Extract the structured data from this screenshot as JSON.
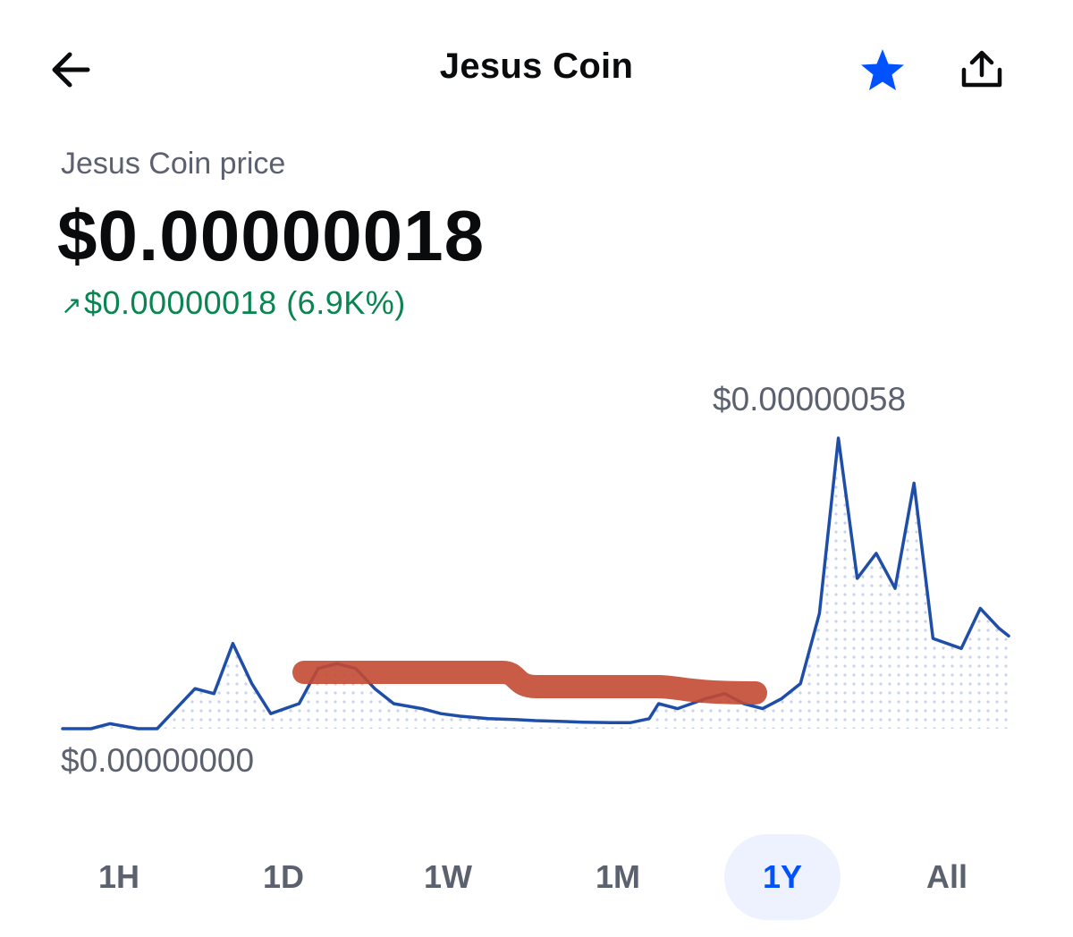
{
  "header": {
    "title": "Jesus Coin",
    "back_icon": "arrow-left-icon",
    "star_icon": "star-icon",
    "share_icon": "share-icon"
  },
  "price": {
    "label": "Jesus Coin price",
    "value": "$0.00000018",
    "change_arrow": "↗",
    "change_text": "$0.00000018 (6.9K%)"
  },
  "chart": {
    "max_label": "$0.00000058",
    "min_label": "$0.00000000"
  },
  "tabs": [
    {
      "label": "1H"
    },
    {
      "label": "1D"
    },
    {
      "label": "1W"
    },
    {
      "label": "1M"
    },
    {
      "label": "1Y",
      "active": true
    },
    {
      "label": "All"
    }
  ],
  "colors": {
    "accent": "#0052ff",
    "line": "#1f4ea8",
    "positive": "#098551",
    "muted": "#5b616e",
    "redaction": "#c24a33"
  },
  "chart_data": {
    "type": "line",
    "ylim": [
      0,
      5.8e-07
    ],
    "x": [
      0,
      3,
      5,
      8,
      10,
      12,
      14,
      16,
      18,
      20,
      22,
      25,
      27,
      29,
      31,
      33,
      35,
      38,
      40,
      42,
      45,
      48,
      50,
      52,
      55,
      58,
      60,
      62,
      63,
      65,
      68,
      70,
      72,
      74,
      76,
      78,
      80,
      82,
      84,
      86,
      88,
      90,
      92,
      95,
      97,
      99,
      100
    ],
    "y": [
      0,
      0,
      1e-08,
      0,
      0,
      4e-08,
      8e-08,
      7e-08,
      1.7e-07,
      9e-08,
      3e-08,
      5e-08,
      1.2e-07,
      1.3e-07,
      1.2e-07,
      8e-08,
      5e-08,
      4e-08,
      3e-08,
      2.5e-08,
      2e-08,
      1.8e-08,
      1.6e-08,
      1.5e-08,
      1.3e-08,
      1.2e-08,
      1.2e-08,
      2e-08,
      5e-08,
      4e-08,
      6e-08,
      7e-08,
      5e-08,
      4e-08,
      6e-08,
      9e-08,
      2.3e-07,
      5.8e-07,
      3e-07,
      3.5e-07,
      2.8e-07,
      4.9e-07,
      1.8e-07,
      1.6e-07,
      2.4e-07,
      2e-07,
      1.85e-07
    ]
  }
}
